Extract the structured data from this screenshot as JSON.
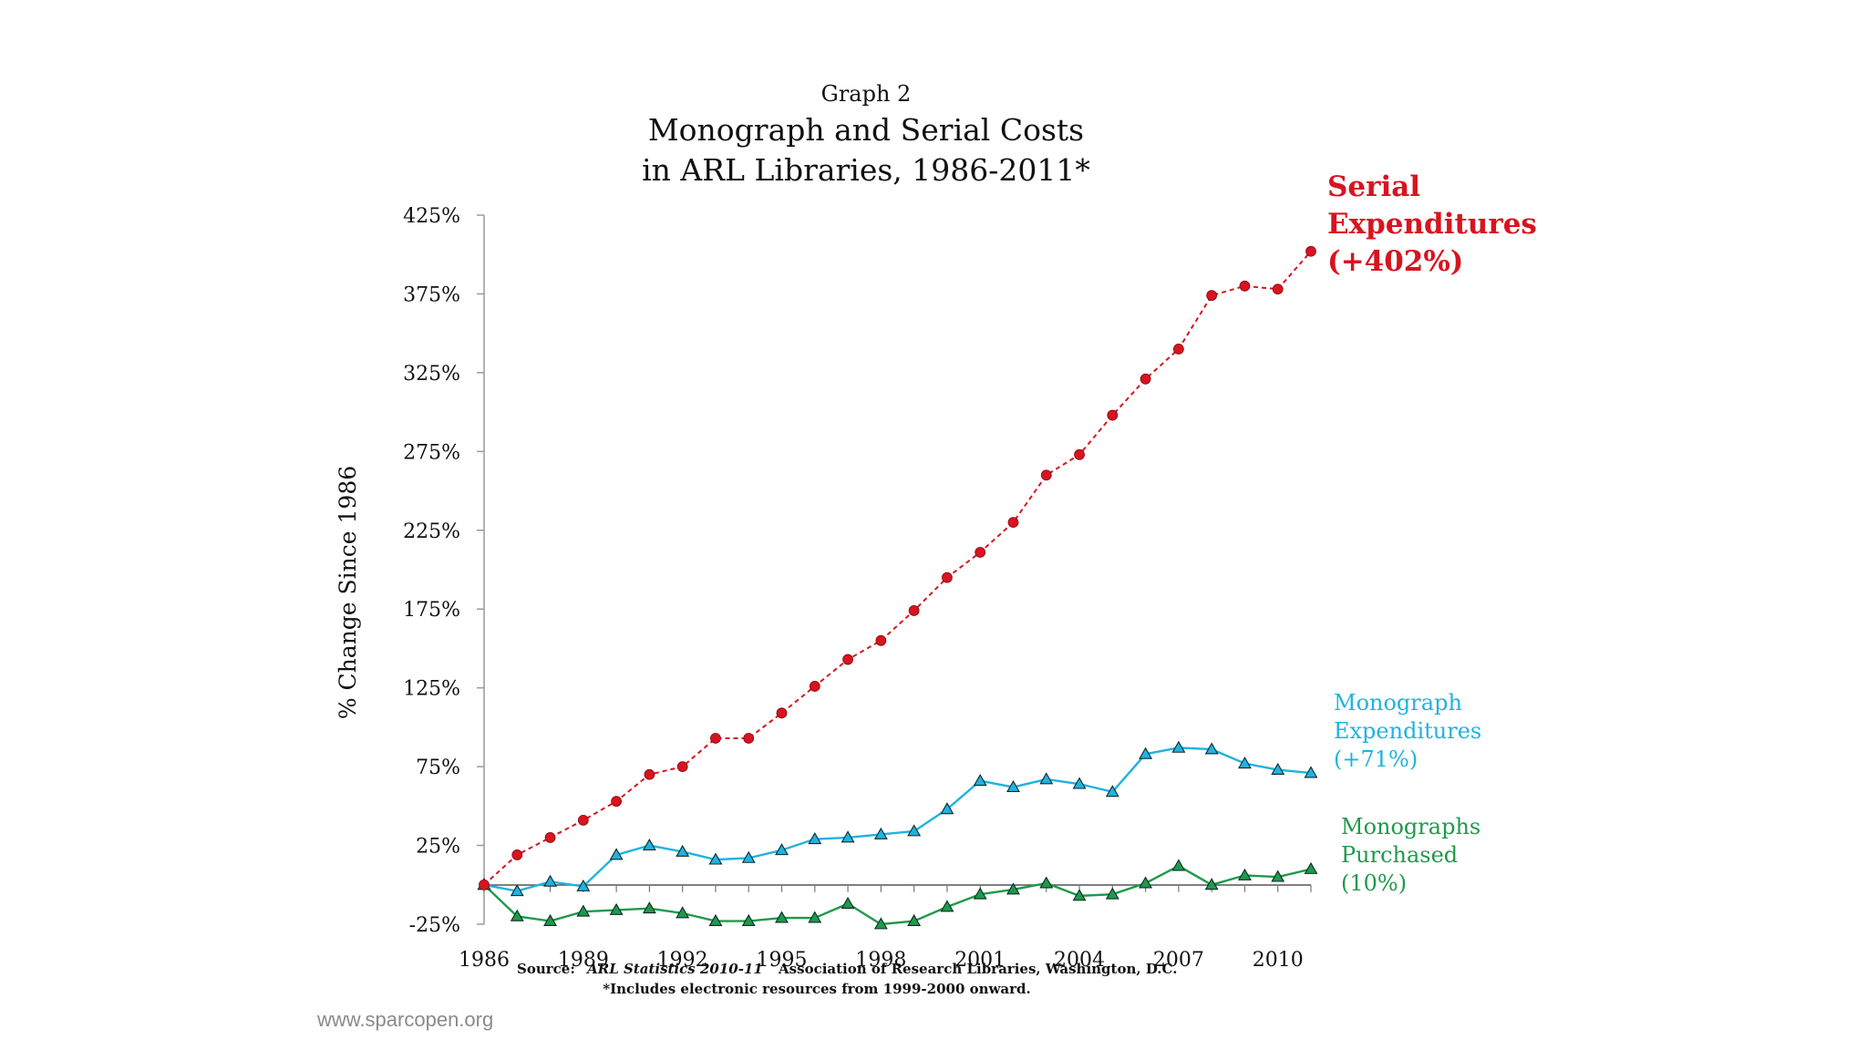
{
  "chart_data": {
    "type": "line",
    "graph_label": "Graph 2",
    "title_line1": "Monograph and Serial Costs",
    "title_line2": "in ARL Libraries, 1986-2011*",
    "ylabel": "% Change Since 1986",
    "xlabel": "",
    "ylim": [
      -25,
      425
    ],
    "xlim": [
      1986,
      2011
    ],
    "yticks": [
      -25,
      25,
      75,
      125,
      175,
      225,
      275,
      325,
      375,
      425
    ],
    "ytick_labels": [
      "-25%",
      "25%",
      "75%",
      "125%",
      "175%",
      "225%",
      "275%",
      "325%",
      "375%",
      "425%"
    ],
    "xticks": [
      1986,
      1989,
      1992,
      1995,
      1998,
      2001,
      2004,
      2007,
      2010
    ],
    "xtick_labels": [
      "1986",
      "1989",
      "1992",
      "1995",
      "1998",
      "2001",
      "2004",
      "2007",
      "2010"
    ],
    "x": [
      1986,
      1987,
      1988,
      1989,
      1990,
      1991,
      1992,
      1993,
      1994,
      1995,
      1996,
      1997,
      1998,
      1999,
      2000,
      2001,
      2002,
      2003,
      2004,
      2005,
      2006,
      2007,
      2008,
      2009,
      2010,
      2011
    ],
    "series": [
      {
        "name": "Serial Expenditures",
        "label_lines": [
          "Serial",
          "Expenditures",
          "(+402%)"
        ],
        "color": "#d7141f",
        "marker": "circle",
        "dashed": true,
        "values": [
          0,
          19,
          30,
          41,
          53,
          70,
          75,
          93,
          93,
          109,
          126,
          143,
          155,
          174,
          195,
          211,
          230,
          260,
          273,
          298,
          321,
          340,
          374,
          380,
          378,
          402
        ]
      },
      {
        "name": "Monograph Expenditures",
        "label_lines": [
          "Monograph",
          "Expenditures",
          "(+71%)"
        ],
        "color": "#1fb3e0",
        "marker": "triangle",
        "dashed": false,
        "values": [
          0,
          -4,
          2,
          -1,
          19,
          25,
          21,
          16,
          17,
          22,
          29,
          30,
          32,
          34,
          48,
          66,
          62,
          67,
          64,
          59,
          83,
          87,
          86,
          77,
          73,
          71
        ]
      },
      {
        "name": "Monographs Purchased",
        "label_lines": [
          "Monographs",
          "Purchased",
          "(10%)"
        ],
        "color": "#1e9a4a",
        "marker": "triangle",
        "dashed": false,
        "values": [
          0,
          -20,
          -23,
          -17,
          -16,
          -15,
          -18,
          -23,
          -23,
          -21,
          -21,
          -12,
          -25,
          -23,
          -14,
          -6,
          -3,
          1,
          -7,
          -6,
          1,
          12,
          0,
          6,
          5,
          10
        ]
      }
    ],
    "source_prefix": "Source:",
    "source_title": "ARL Statistics 2010-11",
    "source_rest": "Association of Research Libraries, Washington, D.C.",
    "footnote": "*Includes electronic resources from 1999-2000 onward."
  },
  "footer": {
    "watermark": "www.sparcopen.org"
  }
}
